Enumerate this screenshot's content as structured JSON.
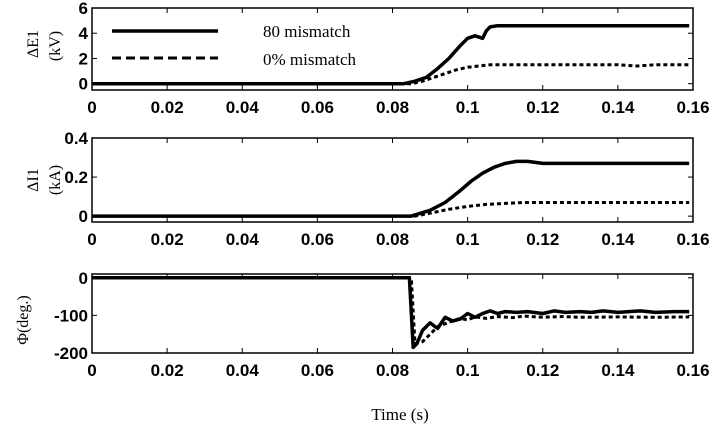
{
  "chart_data": [
    {
      "type": "line",
      "ylabel_line1": "ΔE1",
      "ylabel_line2": "(kV)",
      "xlim": [
        0,
        0.16
      ],
      "ylim": [
        -0.5,
        6
      ],
      "yticks": [
        "0",
        "2",
        "4",
        "6"
      ],
      "ytick_values": [
        0,
        2,
        4,
        6
      ],
      "xticks": [
        "0",
        "0.02",
        "0.04",
        "0.06",
        "0.08",
        "0.1",
        "0.12",
        "0.14",
        "0.16"
      ],
      "legend_position": "top-left",
      "series": [
        {
          "name": "80 mismatch",
          "style": "solid",
          "x": [
            0,
            0.083,
            0.086,
            0.089,
            0.092,
            0.095,
            0.098,
            0.1,
            0.102,
            0.104,
            0.105,
            0.106,
            0.108,
            0.11,
            0.113,
            0.12,
            0.159
          ],
          "y": [
            0,
            0,
            0.2,
            0.5,
            1.2,
            2.0,
            3.0,
            3.6,
            3.8,
            3.6,
            4.2,
            4.5,
            4.6,
            4.6,
            4.6,
            4.6,
            4.6
          ]
        },
        {
          "name": "0% mismatch",
          "style": "dashed",
          "x": [
            0,
            0.085,
            0.088,
            0.091,
            0.094,
            0.097,
            0.1,
            0.103,
            0.106,
            0.11,
            0.115,
            0.125,
            0.14,
            0.145,
            0.15,
            0.159
          ],
          "y": [
            0,
            0,
            0.2,
            0.5,
            0.8,
            1.1,
            1.3,
            1.4,
            1.5,
            1.5,
            1.5,
            1.5,
            1.5,
            1.4,
            1.5,
            1.5
          ]
        }
      ]
    },
    {
      "type": "line",
      "ylabel_line1": "ΔI1",
      "ylabel_line2": "(kA)",
      "xlim": [
        0,
        0.16
      ],
      "ylim": [
        -0.03,
        0.4
      ],
      "yticks": [
        "0",
        "0.2",
        "0.4"
      ],
      "ytick_values": [
        0,
        0.2,
        0.4
      ],
      "xticks": [
        "0",
        "0.02",
        "0.04",
        "0.06",
        "0.08",
        "0.1",
        "0.12",
        "0.14",
        "0.16"
      ],
      "series": [
        {
          "name": "80 mismatch",
          "style": "solid",
          "x": [
            0,
            0.085,
            0.09,
            0.094,
            0.098,
            0.101,
            0.104,
            0.107,
            0.11,
            0.113,
            0.116,
            0.12,
            0.159
          ],
          "y": [
            0,
            0,
            0.03,
            0.07,
            0.13,
            0.18,
            0.22,
            0.25,
            0.27,
            0.28,
            0.28,
            0.27,
            0.27
          ]
        },
        {
          "name": "0% mismatch",
          "style": "dashed",
          "x": [
            0,
            0.086,
            0.09,
            0.095,
            0.1,
            0.105,
            0.11,
            0.115,
            0.12,
            0.159
          ],
          "y": [
            0,
            0,
            0.015,
            0.035,
            0.05,
            0.06,
            0.065,
            0.07,
            0.07,
            0.07
          ]
        }
      ]
    },
    {
      "type": "line",
      "ylabel_line1": "Φ(deg.)",
      "ylabel_line2": "",
      "xlabel": "Time (s)",
      "xlim": [
        0,
        0.16
      ],
      "ylim": [
        -200,
        10
      ],
      "yticks": [
        "0",
        "-100",
        "-200"
      ],
      "ytick_values": [
        0,
        -100,
        -200
      ],
      "xticks": [
        "0",
        "0.02",
        "0.04",
        "0.06",
        "0.08",
        "0.1",
        "0.12",
        "0.14",
        "0.16"
      ],
      "series": [
        {
          "name": "80 mismatch",
          "style": "solid",
          "x": [
            0,
            0.0845,
            0.0855,
            0.0865,
            0.088,
            0.09,
            0.092,
            0.094,
            0.096,
            0.098,
            0.1,
            0.102,
            0.104,
            0.106,
            0.108,
            0.11,
            0.113,
            0.116,
            0.12,
            0.123,
            0.126,
            0.13,
            0.133,
            0.136,
            0.14,
            0.143,
            0.146,
            0.15,
            0.155,
            0.159
          ],
          "y": [
            0,
            0,
            -185,
            -175,
            -140,
            -120,
            -135,
            -105,
            -115,
            -110,
            -95,
            -105,
            -95,
            -88,
            -95,
            -90,
            -92,
            -90,
            -95,
            -88,
            -92,
            -90,
            -92,
            -88,
            -92,
            -90,
            -88,
            -92,
            -90,
            -90
          ]
        },
        {
          "name": "0% mismatch",
          "style": "dashed",
          "x": [
            0,
            0.085,
            0.086,
            0.088,
            0.09,
            0.092,
            0.095,
            0.098,
            0.1,
            0.102,
            0.105,
            0.108,
            0.112,
            0.115,
            0.12,
            0.125,
            0.13,
            0.14,
            0.15,
            0.159
          ],
          "y": [
            0,
            0,
            -175,
            -170,
            -150,
            -130,
            -118,
            -108,
            -112,
            -104,
            -108,
            -103,
            -106,
            -102,
            -105,
            -103,
            -105,
            -104,
            -105,
            -104
          ]
        }
      ]
    }
  ]
}
